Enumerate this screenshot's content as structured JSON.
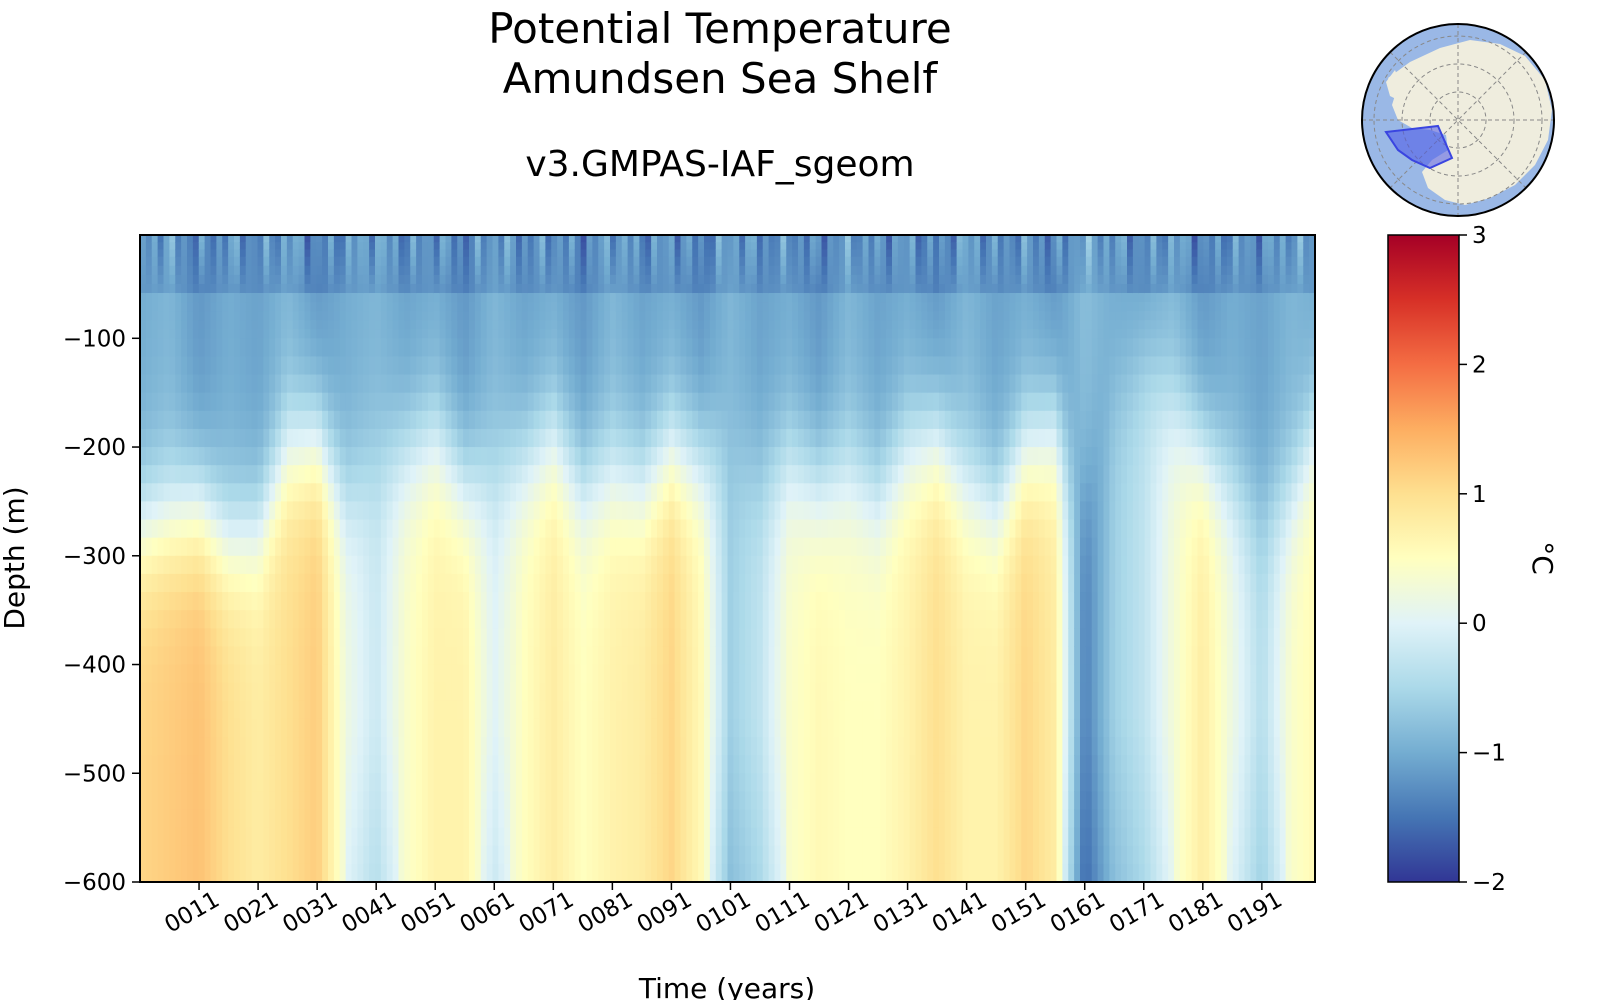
{
  "title_line1": "Potential Temperature",
  "title_line2": "Amundsen Sea Shelf",
  "subtitle": "v3.GMPAS-IAF_sgeom",
  "colors": {
    "colormap": [
      "#313695",
      "#4575b4",
      "#74add1",
      "#abd9e9",
      "#e0f3f8",
      "#ffffbf",
      "#fee090",
      "#fdae61",
      "#f46d43",
      "#d73027",
      "#a50026"
    ],
    "ocean": "#9ab8e6",
    "land": "#efedde",
    "region": "#4a55e8"
  },
  "chart_data": {
    "type": "heatmap",
    "title": "Potential Temperature\nAmundsen Sea Shelf",
    "subtitle": "v3.GMPAS-IAF_sgeom",
    "xlabel": "Time (years)",
    "ylabel": "Depth (m)",
    "colorbar_label": "°C",
    "xlim": [
      1,
      200
    ],
    "ylim": [
      -600,
      -5
    ],
    "clim": [
      -2,
      3
    ],
    "x_ticks": [
      11,
      21,
      31,
      41,
      51,
      61,
      71,
      81,
      91,
      101,
      111,
      121,
      131,
      141,
      151,
      161,
      171,
      181,
      191
    ],
    "x_tick_labels": [
      "0011",
      "0021",
      "0031",
      "0041",
      "0051",
      "0061",
      "0071",
      "0081",
      "0091",
      "0101",
      "0111",
      "0121",
      "0131",
      "0141",
      "0151",
      "0161",
      "0171",
      "0181",
      "0191"
    ],
    "y_ticks": [
      -100,
      -200,
      -300,
      -400,
      -500,
      -600
    ],
    "y_tick_labels": [
      "−100",
      "−200",
      "−300",
      "−400",
      "−500",
      "−600"
    ],
    "colorbar_ticks": [
      3,
      2,
      1,
      0,
      -1,
      -2
    ],
    "colorbar_tick_labels": [
      "3",
      "2",
      "1",
      "0",
      "−1",
      "−2"
    ],
    "profiles": {
      "depths": [
        -5,
        -25,
        -50,
        -75,
        -100,
        -150,
        -200,
        -250,
        -300,
        -350,
        -400,
        -450,
        -500,
        -550,
        -600
      ],
      "years": [
        1,
        6,
        11,
        16,
        21,
        26,
        31,
        36,
        41,
        46,
        51,
        56,
        61,
        66,
        71,
        76,
        81,
        86,
        91,
        96,
        101,
        106,
        111,
        116,
        121,
        126,
        131,
        136,
        141,
        146,
        151,
        156,
        161,
        166,
        171,
        176,
        181,
        186,
        191,
        196,
        200
      ],
      "surface": [
        -1.0,
        -0.9,
        -1.2,
        -1.0,
        -1.1,
        -0.9,
        -1.2,
        -1.0,
        -0.9,
        -1.1,
        -1.0,
        -1.2,
        -0.9,
        -1.1,
        -1.0,
        -1.2,
        -0.9,
        -1.1,
        -1.0,
        -1.2,
        -0.9,
        -1.1,
        -1.0,
        -1.2,
        -0.9,
        -1.1,
        -1.0,
        -1.2,
        -0.9,
        -1.1,
        -1.0,
        -1.2,
        -0.8,
        -1.0,
        -1.1,
        -0.9,
        -1.2,
        -1.0,
        -1.1,
        -0.9,
        -1.0
      ],
      "thermocline_depth": [
        270,
        260,
        250,
        280,
        270,
        200,
        190,
        240,
        210,
        200,
        190,
        230,
        220,
        210,
        190,
        230,
        220,
        230,
        200,
        210,
        200,
        220,
        210,
        230,
        220,
        240,
        200,
        190,
        230,
        250,
        200,
        180,
        250,
        150,
        120,
        160,
        200,
        230,
        260,
        240,
        180
      ],
      "deep_temp": [
        1.1,
        1.2,
        1.3,
        1.0,
        0.8,
        1.0,
        1.2,
        0.2,
        -0.2,
        0.4,
        0.7,
        0.7,
        0.0,
        0.5,
        0.8,
        0.5,
        0.7,
        0.8,
        1.1,
        0.6,
        -0.6,
        -0.3,
        0.4,
        0.6,
        0.5,
        0.5,
        0.7,
        1.0,
        0.7,
        0.7,
        1.1,
        0.8,
        -1.4,
        -0.6,
        -0.3,
        0.3,
        0.8,
        0.2,
        -0.4,
        0.4,
        0.6
      ]
    }
  }
}
